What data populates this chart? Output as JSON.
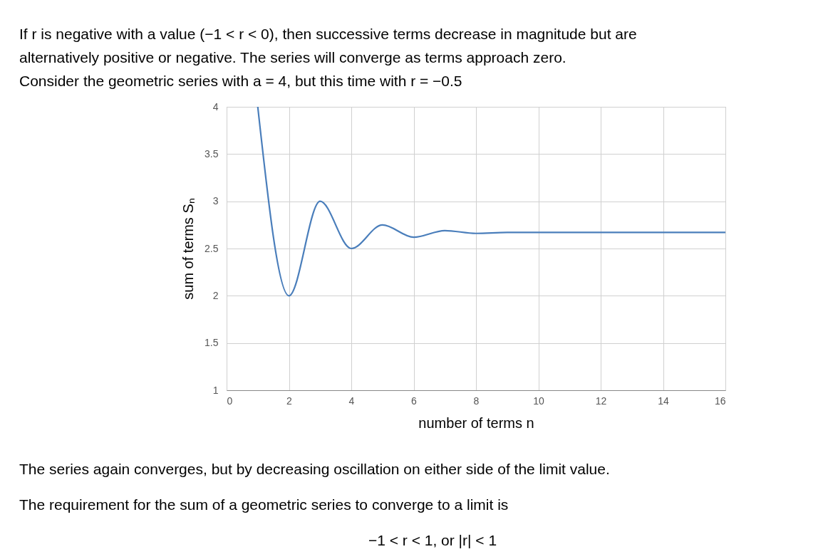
{
  "chart_data": {
    "type": "line",
    "title": [
      "If r is negative with a value  (−1 < r < 0), then successive terms decrease in magnitude but are",
      "alternatively positive or negative.  The series will converge as terms approach zero."
    ],
    "subtitle": "Consider the geometric series with a =  4,  but this time with r =  −0.5",
    "xlabel": "number of terms  n",
    "ylabel": "sum of terms   Sₙ",
    "x": [
      1,
      2,
      3,
      4,
      5,
      6,
      7,
      8,
      9,
      10,
      11,
      12,
      13,
      14,
      15,
      16
    ],
    "series": [
      {
        "color": "#4a7ebb",
        "values": [
          4,
          2,
          3,
          2.5,
          2.75,
          2.62,
          2.69,
          2.66,
          2.67,
          2.67,
          2.67,
          2.67,
          2.67,
          2.67,
          2.67,
          2.67
        ]
      }
    ],
    "xlim": [
      0,
      16
    ],
    "xticks": [
      0,
      2,
      4,
      6,
      8,
      10,
      12,
      14,
      16
    ],
    "ylim": [
      1,
      4
    ],
    "yticks": [
      1,
      1.5,
      2,
      2.5,
      3,
      3.5,
      4
    ],
    "grid": true,
    "marker": "none",
    "line_style": "solid",
    "annotations": [
      "The series again converges, but by decreasing oscillation on either side of the limit value.",
      "The requirement for the sum of a geometric series to converge to a limit is",
      "−1 < r < 1,         or        |r| < 1"
    ]
  }
}
